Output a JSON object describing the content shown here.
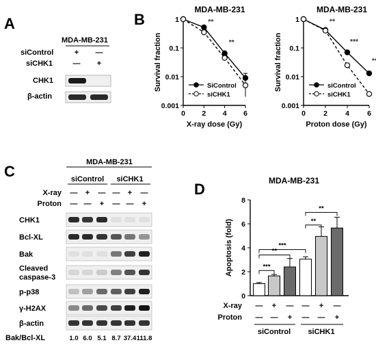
{
  "panels": {
    "A": "A",
    "B": "B",
    "C": "C",
    "D": "D"
  },
  "panel_a": {
    "cell_line": "MDA-MB-231",
    "row_labels": [
      "siControl",
      "siCHK1"
    ],
    "row_marks": [
      [
        "+",
        "—"
      ],
      [
        "—",
        "+"
      ]
    ],
    "blots": [
      "CHK1",
      "β-actin"
    ]
  },
  "panel_c": {
    "cell_line": "MDA-MB-231",
    "groups": [
      "siControl",
      "siCHK1"
    ],
    "treatment_rows": [
      {
        "label": "X-ray",
        "marks": [
          "—",
          "+",
          "—",
          "—",
          "+",
          "—"
        ]
      },
      {
        "label": "Proton",
        "marks": [
          "—",
          "—",
          "+",
          "—",
          "—",
          "+"
        ]
      }
    ],
    "blots": [
      {
        "label": "CHK1",
        "intensity": [
          0.9,
          0.85,
          0.9,
          0.05,
          0.05,
          0.05
        ]
      },
      {
        "label": "Bcl-XL",
        "intensity": [
          0.9,
          0.9,
          0.85,
          0.7,
          0.55,
          0.4
        ]
      },
      {
        "label": "Bak",
        "intensity": [
          0.05,
          0.05,
          0.05,
          0.55,
          0.8,
          0.95
        ]
      },
      {
        "label": "Cleaved\ncaspase-3",
        "intensity": [
          0.1,
          0.1,
          0.15,
          0.5,
          0.7,
          0.85
        ]
      },
      {
        "label": "p-p38",
        "intensity": [
          0.2,
          0.35,
          0.6,
          0.65,
          0.8,
          0.95
        ]
      },
      {
        "label": "γ-H2AX",
        "intensity": [
          0.45,
          0.6,
          0.75,
          0.8,
          0.95,
          1.0
        ]
      },
      {
        "label": "β-actin",
        "intensity": [
          0.85,
          0.85,
          0.85,
          0.85,
          0.85,
          0.85
        ]
      }
    ],
    "ratio_label": "Bak/Bcl-XL",
    "ratios": [
      "1.0",
      "6.0",
      "5.1",
      "8.7",
      "37.4",
      "111.8"
    ]
  },
  "chart_data": [
    {
      "type": "line",
      "title": "MDA-MB-231",
      "xlabel": "X-ray dose (Gy)",
      "ylabel": "Survival fraction",
      "x": [
        0,
        2,
        4,
        6
      ],
      "xlim": [
        0,
        6
      ],
      "yscale": "log",
      "ylim": [
        0.001,
        1
      ],
      "yticks": [
        "0.001",
        "0.01",
        "0.1",
        "1"
      ],
      "xticks": [
        "0",
        "2",
        "4",
        "6"
      ],
      "series": [
        {
          "name": "SiControl",
          "values": [
            1.0,
            0.52,
            0.065,
            0.009
          ],
          "err": [
            0,
            0.04,
            0.01,
            0.004
          ],
          "style": "solid",
          "marker": "filled-circle"
        },
        {
          "name": "siCHK1",
          "values": [
            1.0,
            0.35,
            0.045,
            0.005
          ],
          "err": [
            0,
            0.04,
            0.008,
            0.003
          ],
          "style": "dashed",
          "marker": "open-circle"
        }
      ],
      "annotations": [
        "**",
        "**"
      ],
      "legend": "bottom-left"
    },
    {
      "type": "line",
      "title": "MDA-MB-231",
      "xlabel": "Proton dose (Gy)",
      "ylabel": "Survival fraction",
      "x": [
        0,
        2,
        4,
        6
      ],
      "xlim": [
        0,
        6
      ],
      "yscale": "log",
      "ylim": [
        0.001,
        1
      ],
      "yticks": [
        "0.001",
        "0.01",
        "0.1",
        "1"
      ],
      "xticks": [
        "0",
        "2",
        "4",
        "6"
      ],
      "series": [
        {
          "name": "siControl",
          "values": [
            1.0,
            0.42,
            0.07,
            0.013
          ],
          "err": [
            0,
            0.03,
            0.01,
            0.002
          ],
          "style": "solid",
          "marker": "filled-circle"
        },
        {
          "name": "siCHK1",
          "values": [
            1.0,
            0.4,
            0.025,
            0.0025
          ],
          "err": [
            0,
            0.03,
            0.004,
            0.0004
          ],
          "style": "dashed",
          "marker": "open-circle"
        }
      ],
      "annotations": [
        "**",
        "***",
        "***"
      ],
      "legend": "bottom-left"
    },
    {
      "type": "bar",
      "title": "MDA-MB-231",
      "ylabel": "Apoptosis (fold)",
      "ylim": [
        0,
        8
      ],
      "yticks": [
        "0",
        "2",
        "4",
        "6",
        "8"
      ],
      "values": [
        1.0,
        1.65,
        2.4,
        3.05,
        4.95,
        5.65
      ],
      "errors": [
        0.1,
        0.12,
        0.7,
        0.2,
        0.8,
        0.9
      ],
      "fills": [
        "#ffffff",
        "#c8c8c8",
        "#6b6b6b",
        "#ffffff",
        "#c8c8c8",
        "#6b6b6b"
      ],
      "row_labels": [
        "X-ray",
        "Proton"
      ],
      "row_marks": [
        [
          "—",
          "+",
          "—",
          "—",
          "+",
          "—"
        ],
        [
          "—",
          "—",
          "+",
          "—",
          "—",
          "+"
        ]
      ],
      "groups": [
        "siControl",
        "siCHK1"
      ],
      "significance": [
        "***",
        "**",
        "***",
        "**",
        "**"
      ]
    }
  ]
}
